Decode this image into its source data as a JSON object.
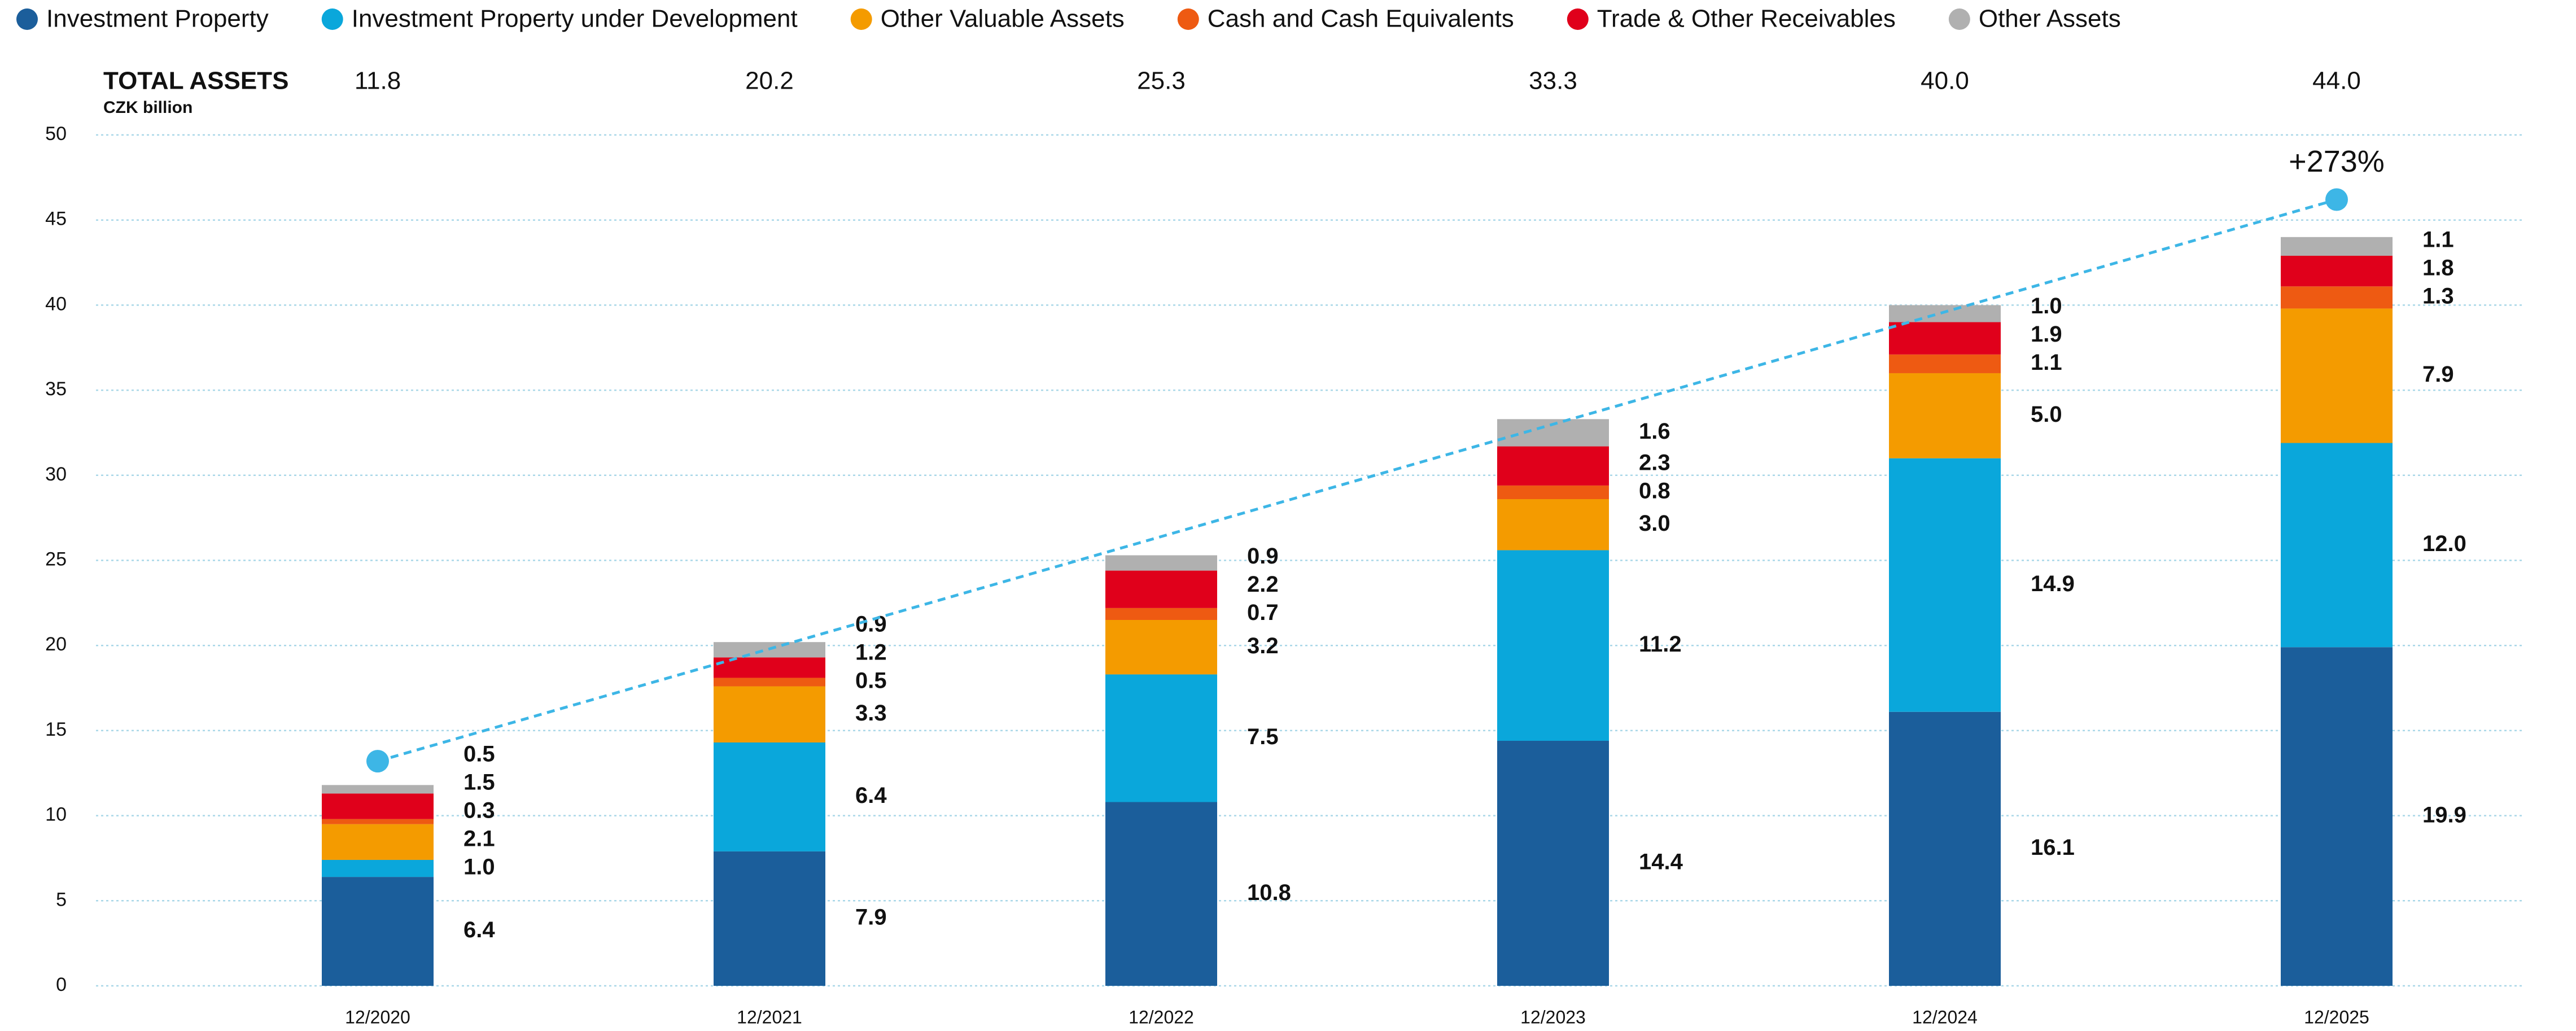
{
  "chart_data": {
    "type": "stacked_bar",
    "title": "TOTAL ASSETS",
    "subtitle": "CZK billion",
    "categories": [
      "12/2020",
      "12/2021",
      "12/2022",
      "12/2023",
      "12/2024",
      "12/2025"
    ],
    "totals": {
      "values": [
        11.8,
        20.2,
        25.3,
        33.3,
        40,
        44
      ],
      "value_labels": [
        "11.8",
        "20.2",
        "25.3",
        "33.3",
        "40.0",
        "44.0"
      ]
    },
    "series": [
      {
        "name": "Investment Property",
        "color": "#1b5e9b",
        "values": [
          6.4,
          7.9,
          10.8,
          14.4,
          16.1,
          19.9
        ],
        "value_labels": [
          "6.4",
          "7.9",
          "10.8",
          "14.4",
          "16.1",
          "19.9"
        ]
      },
      {
        "name": "Investment Property under Development",
        "color": "#0aa7db",
        "values": [
          1,
          6.4,
          7.5,
          11.2,
          14.9,
          12
        ],
        "value_labels": [
          "1.0",
          "6.4",
          "7.5",
          "11.2",
          "14.9",
          "12.0"
        ]
      },
      {
        "name": "Other Valuable Assets",
        "color": "#f49b00",
        "values": [
          2.1,
          3.3,
          3.2,
          3,
          5,
          7.9
        ],
        "value_labels": [
          "2.1",
          "3.3",
          "3.2",
          "3.0",
          "5.0",
          "7.9"
        ]
      },
      {
        "name": "Cash and Cash Equivalents",
        "color": "#ee5a12",
        "values": [
          0.3,
          0.5,
          0.7,
          0.8,
          1.1,
          1.3
        ],
        "value_labels": [
          "0.3",
          "0.5",
          "0.7",
          "0.8",
          "1.1",
          "1.3"
        ]
      },
      {
        "name": "Trade & Other Receivables",
        "color": "#e0001b",
        "values": [
          1.5,
          1.2,
          2.2,
          2.3,
          1.9,
          1.8
        ],
        "value_labels": [
          "1.5",
          "1.2",
          "2.2",
          "2.3",
          "1.9",
          "1.8"
        ]
      },
      {
        "name": "Other Assets",
        "color": "#b0b0b0",
        "values": [
          0.5,
          0.9,
          0.9,
          1.6,
          1,
          1.1
        ],
        "value_labels": [
          "0.5",
          "0.9",
          "0.9",
          "1.6",
          "1.0",
          "1.1"
        ]
      }
    ],
    "trend": {
      "categories": [
        "12/2020",
        "12/2025"
      ],
      "values": [
        13.2,
        46.2
      ],
      "color": "#3db6e6",
      "annotation": "+273%"
    },
    "ylim": [
      0,
      50
    ],
    "yticks": [
      0,
      5,
      10,
      15,
      20,
      25,
      30,
      35,
      40,
      45,
      50
    ],
    "grid": true
  }
}
